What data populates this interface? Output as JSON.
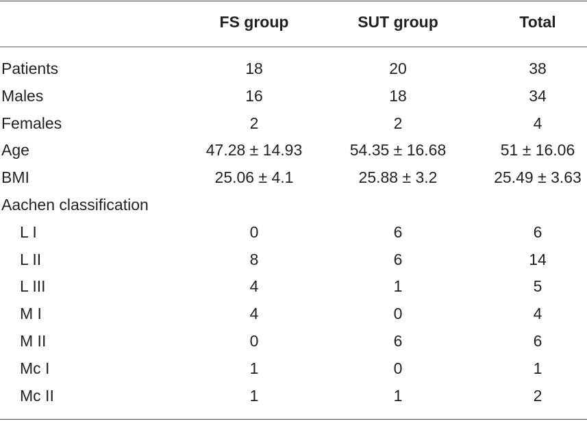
{
  "table": {
    "headers": [
      "",
      "FS group",
      "SUT group",
      "Total"
    ],
    "rows": [
      {
        "label": "Patients",
        "fs": "18",
        "sut": "20",
        "total": "38"
      },
      {
        "label": "Males",
        "fs": "16",
        "sut": "18",
        "total": "34"
      },
      {
        "label": "Females",
        "fs": "2",
        "sut": "2",
        "total": "4"
      },
      {
        "label": "Age",
        "fs": "47.28 ± 14.93",
        "sut": "54.35 ± 16.68",
        "total": "51 ± 16.06"
      },
      {
        "label": "BMI",
        "fs": "25.06 ± 4.1",
        "sut": "25.88 ± 3.2",
        "total": "25.49 ± 3.63"
      },
      {
        "label": "Aachen classification",
        "fs": "",
        "sut": "",
        "total": ""
      },
      {
        "label": "L I",
        "fs": "0",
        "sut": "6",
        "total": "6"
      },
      {
        "label": "L II",
        "fs": "8",
        "sut": "6",
        "total": "14"
      },
      {
        "label": "L III",
        "fs": "4",
        "sut": "1",
        "total": "5"
      },
      {
        "label": "M I",
        "fs": "4",
        "sut": "0",
        "total": "4"
      },
      {
        "label": "M II",
        "fs": "0",
        "sut": "6",
        "total": "6"
      },
      {
        "label": "Mc I",
        "fs": "1",
        "sut": "0",
        "total": "1"
      },
      {
        "label": "Mc II",
        "fs": "1",
        "sut": "1",
        "total": "2"
      }
    ]
  }
}
